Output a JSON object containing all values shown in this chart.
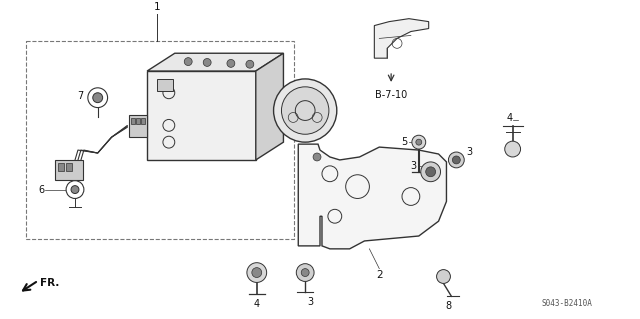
{
  "bg_color": "#ffffff",
  "fig_width": 6.4,
  "fig_height": 3.19,
  "dpi": 100,
  "line_color": "#333333",
  "label_color": "#111111",
  "ref_code": "S043-B2410A",
  "b710_label": "B-7-10",
  "fr_label": "FR."
}
